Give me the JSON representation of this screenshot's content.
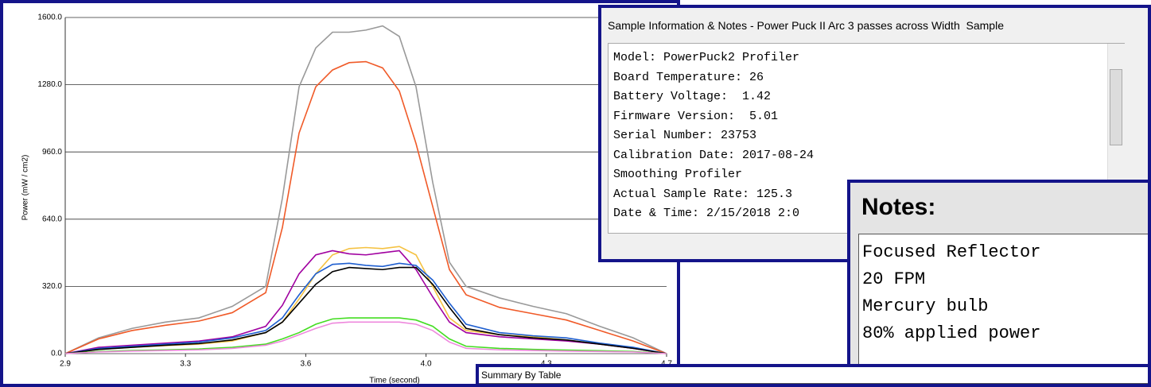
{
  "chart_data": {
    "type": "line",
    "x_label": "Time (second)",
    "y_label": "Power (mW / cm2)",
    "xlim": [
      2.9,
      4.7
    ],
    "ylim": [
      0,
      1600
    ],
    "xticks": [
      {
        "value": 2.9,
        "label": "2.9"
      },
      {
        "value": 3.26,
        "label": "3.3"
      },
      {
        "value": 3.62,
        "label": "3.6"
      },
      {
        "value": 3.98,
        "label": "4.0"
      },
      {
        "value": 4.34,
        "label": "4.3"
      },
      {
        "value": 4.7,
        "label": "4.7"
      }
    ],
    "yticks": [
      {
        "value": 0,
        "label": "0.0"
      },
      {
        "value": 320,
        "label": "320.0"
      },
      {
        "value": 640,
        "label": "640.0"
      },
      {
        "value": 960,
        "label": "960.0"
      },
      {
        "value": 1280,
        "label": "1280.0"
      },
      {
        "value": 1600,
        "label": "1600.0"
      }
    ],
    "grid": true,
    "x": [
      2.9,
      3.0,
      3.1,
      3.2,
      3.3,
      3.4,
      3.5,
      3.55,
      3.6,
      3.65,
      3.7,
      3.75,
      3.8,
      3.85,
      3.9,
      3.95,
      4.0,
      4.05,
      4.1,
      4.2,
      4.3,
      4.4,
      4.5,
      4.6,
      4.7
    ],
    "series": [
      {
        "color": "#999999",
        "values": [
          0,
          75,
          120,
          150,
          170,
          225,
          320,
          740,
          1270,
          1455,
          1530,
          1530,
          1540,
          1560,
          1510,
          1270,
          815,
          435,
          320,
          265,
          225,
          190,
          130,
          75,
          0
        ]
      },
      {
        "color": "#f05a28",
        "values": [
          0,
          70,
          110,
          135,
          155,
          195,
          290,
          600,
          1050,
          1270,
          1350,
          1385,
          1390,
          1360,
          1250,
          1000,
          700,
          400,
          280,
          220,
          190,
          160,
          110,
          60,
          0
        ]
      },
      {
        "color": "#f5c242",
        "values": [
          0,
          20,
          30,
          38,
          45,
          60,
          100,
          150,
          260,
          380,
          470,
          500,
          505,
          500,
          510,
          470,
          320,
          170,
          110,
          90,
          80,
          65,
          45,
          25,
          0
        ]
      },
      {
        "color": "#a000a0",
        "values": [
          0,
          30,
          40,
          50,
          60,
          80,
          130,
          230,
          380,
          470,
          490,
          475,
          470,
          480,
          490,
          400,
          270,
          150,
          100,
          80,
          70,
          60,
          45,
          25,
          0
        ]
      },
      {
        "color": "#1f5fd0",
        "values": [
          0,
          25,
          35,
          45,
          55,
          75,
          110,
          170,
          280,
          380,
          425,
          430,
          420,
          415,
          430,
          420,
          350,
          240,
          140,
          100,
          85,
          75,
          50,
          30,
          0
        ]
      },
      {
        "color": "#000000",
        "values": [
          0,
          20,
          30,
          40,
          48,
          65,
          100,
          150,
          240,
          330,
          390,
          410,
          405,
          400,
          410,
          410,
          330,
          220,
          120,
          90,
          75,
          65,
          45,
          25,
          0
        ]
      },
      {
        "color": "#44dd22",
        "values": [
          0,
          10,
          15,
          18,
          22,
          30,
          45,
          70,
          100,
          140,
          165,
          170,
          170,
          170,
          170,
          160,
          130,
          70,
          35,
          25,
          20,
          17,
          14,
          10,
          0
        ]
      },
      {
        "color": "#ee88dd",
        "values": [
          0,
          8,
          12,
          15,
          18,
          25,
          40,
          60,
          90,
          120,
          145,
          150,
          150,
          150,
          150,
          140,
          110,
          55,
          25,
          18,
          15,
          12,
          10,
          8,
          0
        ]
      }
    ]
  },
  "sample_info": {
    "title": "Sample Information & Notes - Power Puck II Arc 3 passes across Width  Sample",
    "lines": [
      "Model: PowerPuck2 Profiler",
      "Board Temperature: 26",
      "Battery Voltage:  1.42",
      "Firmware Version:  5.01",
      "Serial Number: 23753",
      "Calibration Date: 2017-08-24",
      "Smoothing Profiler",
      "Actual Sample Rate: 125.3",
      "Date & Time: 2/15/2018 2:0"
    ]
  },
  "notes": {
    "title": "Notes:",
    "lines": [
      "Focused Reflector",
      "20 FPM",
      "Mercury bulb",
      "80% applied power"
    ]
  },
  "summary": {
    "title": "Summary By Table"
  }
}
